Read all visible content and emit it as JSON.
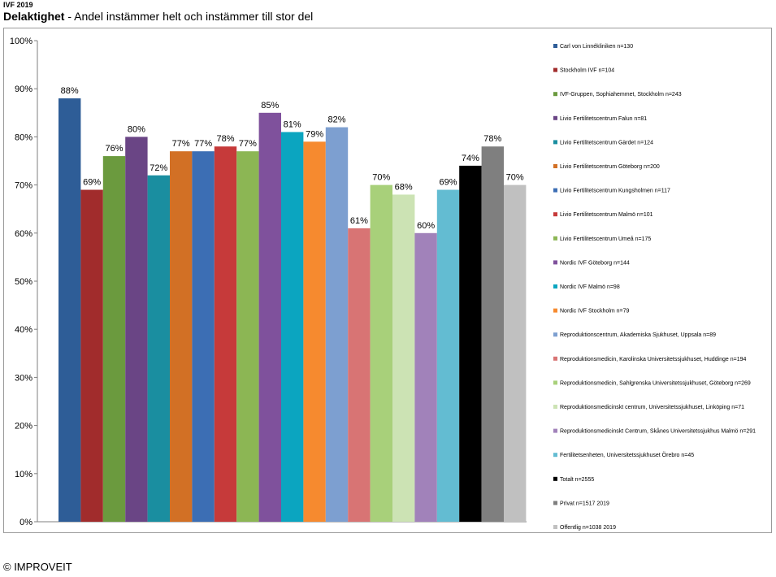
{
  "header": {
    "top_label": "IVF 2019",
    "title_bold": "Delaktighet",
    "title_rest": " - Andel instämmer helt och instämmer till stor del"
  },
  "footer": {
    "copyright": "© IMPROVEIT"
  },
  "chart_data": {
    "type": "bar",
    "ylim": [
      0,
      100
    ],
    "y_ticks": [
      "0%",
      "10%",
      "20%",
      "30%",
      "40%",
      "50%",
      "60%",
      "70%",
      "80%",
      "90%",
      "100%"
    ],
    "grid": false,
    "legend_position": "right",
    "series": [
      {
        "name": "Carl von Linnékliniken n=130",
        "value": 88,
        "label": "88%",
        "color": "#2e5d97"
      },
      {
        "name": "Stockholm IVF n=104",
        "value": 69,
        "label": "69%",
        "color": "#a12c2c"
      },
      {
        "name": "IVF-Gruppen, Sophiahemmet, Stockholm n=243",
        "value": 76,
        "label": "76%",
        "color": "#6b9a3e"
      },
      {
        "name": "Livio Fertilitetscentrum Falun n=81",
        "value": 80,
        "label": "80%",
        "color": "#6a4585"
      },
      {
        "name": "Livio Fertilitetscentrum Gärdet n=124",
        "value": 72,
        "label": "72%",
        "color": "#1a8ea0"
      },
      {
        "name": "Livio Fertilitetscentrum Göteborg n=200",
        "value": 77,
        "label": "77%",
        "color": "#d27025"
      },
      {
        "name": "Livio Fertilitetscentrum Kungsholmen n=117",
        "value": 77,
        "label": "77%",
        "color": "#3c6eb4"
      },
      {
        "name": "Livio Fertilitetscentrum Malmö n=101",
        "value": 78,
        "label": "78%",
        "color": "#c63a3a"
      },
      {
        "name": "Livio Fertilitetscentrum Umeå n=175",
        "value": 77,
        "label": "77%",
        "color": "#8cb654"
      },
      {
        "name": "Nordic IVF Göteborg n=144",
        "value": 85,
        "label": "85%",
        "color": "#7f519c"
      },
      {
        "name": "Nordic IVF Malmö n=98",
        "value": 81,
        "label": "81%",
        "color": "#0ba5c0"
      },
      {
        "name": "Nordic IVF Stockholm n=79",
        "value": 79,
        "label": "79%",
        "color": "#f68a2f"
      },
      {
        "name": "Reproduktionscentrum, Akademiska Sjukhuset, Uppsala n=89",
        "value": 82,
        "label": "82%",
        "color": "#7d9fd0"
      },
      {
        "name": "Reproduktionsmedicin, Karolinska Universitetssjukhuset, Huddinge n=194",
        "value": 61,
        "label": "61%",
        "color": "#d87474"
      },
      {
        "name": "Reproduktionsmedicin, Sahlgrenska Universitetssjukhuset, Göteborg n=269",
        "value": 70,
        "label": "70%",
        "color": "#a8d07a"
      },
      {
        "name": "Reproduktionsmedicinskt centrum, Universitetssjukhuset, Linköping n=71",
        "value": 68,
        "label": "68%",
        "color": "#cce3b4"
      },
      {
        "name": "Reproduktionsmedicinskt Centrum, Skånes Universitetssjukhus Malmö n=291",
        "value": 60,
        "label": "60%",
        "color": "#a182ba"
      },
      {
        "name": "Fertilitetsenheten, Universitetssjukhuset Örebro n=45",
        "value": 69,
        "label": "69%",
        "color": "#63bcd2"
      },
      {
        "name": "Totalt n=2555",
        "value": 74,
        "label": "74%",
        "color": "#000000"
      },
      {
        "name": "Privat n=1517 2019",
        "value": 78,
        "label": "78%",
        "color": "#7f7f7f"
      },
      {
        "name": "Offentlig n=1038 2019",
        "value": 70,
        "label": "70%",
        "color": "#c0c0c0"
      }
    ]
  }
}
